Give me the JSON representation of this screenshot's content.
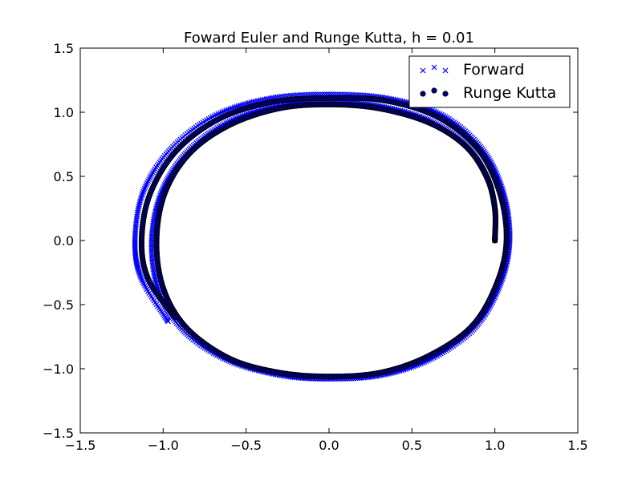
{
  "chart_data": {
    "type": "scatter",
    "title": "Foward Euler and Runge Kutta, h = 0.01",
    "xlabel": "",
    "ylabel": "",
    "xlim": [
      -1.5,
      1.5
    ],
    "ylim": [
      -1.5,
      1.5
    ],
    "xticks": [
      "−1.5",
      "−1.0",
      "−0.5",
      "0.0",
      "0.5",
      "1.0",
      "1.5"
    ],
    "yticks": [
      "−1.5",
      "−1.0",
      "−0.5",
      "0.0",
      "0.5",
      "1.0",
      "1.5"
    ],
    "grid": false,
    "legend_position": "upper right",
    "series": [
      {
        "name": "Forward",
        "marker": "x",
        "color": "#0000ff",
        "points": [
          [
            1.0,
            0.0
          ],
          [
            1.0,
            0.25
          ],
          [
            0.95,
            0.5
          ],
          [
            0.82,
            0.75
          ],
          [
            0.6,
            0.94
          ],
          [
            0.3,
            1.05
          ],
          [
            0.0,
            1.08
          ],
          [
            -0.3,
            1.05
          ],
          [
            -0.6,
            0.93
          ],
          [
            -0.85,
            0.7
          ],
          [
            -1.01,
            0.38
          ],
          [
            -1.07,
            0.0
          ],
          [
            -1.03,
            -0.38
          ],
          [
            -0.88,
            -0.7
          ],
          [
            -0.62,
            -0.93
          ],
          [
            -0.3,
            -1.05
          ],
          [
            0.0,
            -1.08
          ],
          [
            0.32,
            -1.05
          ],
          [
            0.62,
            -0.92
          ],
          [
            0.88,
            -0.68
          ],
          [
            1.03,
            -0.35
          ],
          [
            1.09,
            0.0
          ],
          [
            1.05,
            0.38
          ],
          [
            0.92,
            0.72
          ],
          [
            0.68,
            0.98
          ],
          [
            0.35,
            1.11
          ],
          [
            0.0,
            1.14
          ],
          [
            -0.35,
            1.11
          ],
          [
            -0.68,
            0.98
          ],
          [
            -0.95,
            0.72
          ],
          [
            -1.12,
            0.38
          ],
          [
            -1.17,
            0.0
          ],
          [
            -1.13,
            -0.3
          ],
          [
            -0.97,
            -0.63
          ]
        ]
      },
      {
        "name": "Runge Kutta",
        "marker": "o",
        "color": "#000080",
        "points": [
          [
            1.0,
            0.0
          ],
          [
            1.0,
            0.25
          ],
          [
            0.95,
            0.5
          ],
          [
            0.82,
            0.74
          ],
          [
            0.6,
            0.92
          ],
          [
            0.3,
            1.03
          ],
          [
            0.0,
            1.06
          ],
          [
            -0.3,
            1.03
          ],
          [
            -0.6,
            0.9
          ],
          [
            -0.84,
            0.68
          ],
          [
            -0.99,
            0.37
          ],
          [
            -1.04,
            0.0
          ],
          [
            -1.0,
            -0.37
          ],
          [
            -0.86,
            -0.68
          ],
          [
            -0.6,
            -0.92
          ],
          [
            -0.3,
            -1.03
          ],
          [
            0.0,
            -1.06
          ],
          [
            0.31,
            -1.03
          ],
          [
            0.6,
            -0.9
          ],
          [
            0.86,
            -0.67
          ],
          [
            1.01,
            -0.34
          ],
          [
            1.07,
            0.0
          ],
          [
            1.03,
            0.37
          ],
          [
            0.9,
            0.71
          ],
          [
            0.66,
            0.96
          ],
          [
            0.34,
            1.09
          ],
          [
            0.0,
            1.11
          ],
          [
            -0.34,
            1.08
          ],
          [
            -0.66,
            0.95
          ],
          [
            -0.92,
            0.7
          ],
          [
            -1.08,
            0.36
          ],
          [
            -1.13,
            0.0
          ],
          [
            -1.09,
            -0.3
          ],
          [
            -0.93,
            -0.6
          ]
        ]
      }
    ]
  },
  "colors": {
    "forward": "#0000ff",
    "runge_kutta_fill": "#000080",
    "axes": "#000000",
    "background": "#ffffff"
  }
}
